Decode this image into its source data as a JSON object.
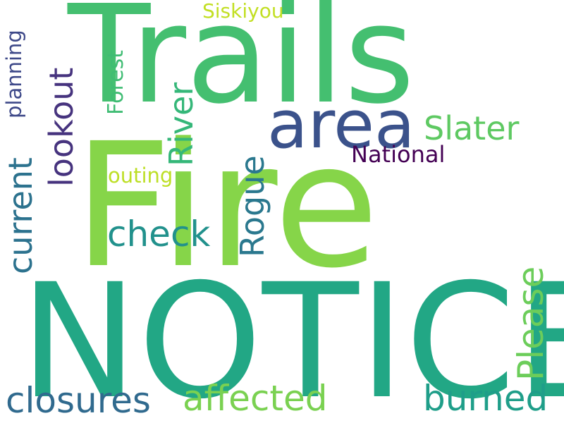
{
  "words": {
    "fire": {
      "text": "Fire",
      "color": "#86d549"
    },
    "notice": {
      "text": "NOTICE",
      "color": "#22a785"
    },
    "trails": {
      "text": "Trails",
      "color": "#44bf70"
    },
    "area": {
      "text": "area",
      "color": "#3b528b"
    },
    "slater": {
      "text": "Slater",
      "color": "#5ec962"
    },
    "lookout": {
      "text": "lookout",
      "color": "#46337e"
    },
    "river": {
      "text": "River",
      "color": "#35b779"
    },
    "rogue": {
      "text": "Rogue",
      "color": "#2a788e"
    },
    "check": {
      "text": "check",
      "color": "#21918c"
    },
    "current": {
      "text": "current",
      "color": "#2c728e"
    },
    "planning": {
      "text": "planning",
      "color": "#3e4989"
    },
    "forest": {
      "text": "Forest",
      "color": "#3fbc73"
    },
    "siskiyou": {
      "text": "Siskiyou",
      "color": "#c2df23"
    },
    "national": {
      "text": "National",
      "color": "#440154"
    },
    "outing": {
      "text": "outing",
      "color": "#bddf26"
    },
    "please": {
      "text": "Please",
      "color": "#6ccd5a"
    },
    "closures": {
      "text": "closures",
      "color": "#306a8e"
    },
    "affected": {
      "text": "affected",
      "color": "#7ad151"
    },
    "burned": {
      "text": "burned",
      "color": "#1f9e89"
    }
  }
}
